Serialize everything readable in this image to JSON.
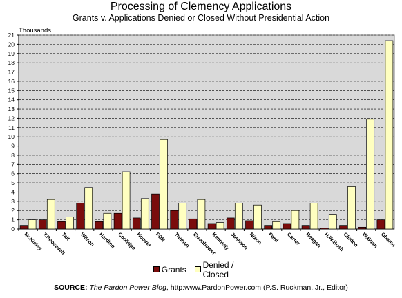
{
  "header": {
    "title": "Processing of Clemency Applications",
    "subtitle": "Grants v. Applications Denied or Closed Without Presidential Action",
    "unit_label": "Thousands"
  },
  "legend": {
    "grants_label": "Grants",
    "denied_label": "Denied / Closed"
  },
  "source": {
    "label": "SOURCE:",
    "blog": "The Pardon Power Blog",
    "rest": ", http:www.PardonPower.com (P.S. Ruckman, Jr., Editor)"
  },
  "colors": {
    "grants": "#7a0c0c",
    "denied": "#ffffc0",
    "plot_bg": "#d9d9d9"
  },
  "chart_data": {
    "type": "bar",
    "title": "Processing of Clemency Applications",
    "subtitle": "Grants v. Applications Denied or Closed Without Presidential Action",
    "ylabel": "Thousands",
    "xlabel": "",
    "ylim": [
      0,
      21
    ],
    "yticks": [
      0,
      1,
      2,
      3,
      4,
      5,
      6,
      7,
      8,
      9,
      10,
      11,
      12,
      13,
      14,
      15,
      16,
      17,
      18,
      19,
      20,
      21
    ],
    "grid": true,
    "legend_position": "bottom",
    "categories": [
      "McKinley",
      "T.Roosevelt",
      "Taft",
      "Wilson",
      "Harding",
      "Coolidge",
      "Hoover",
      "FDR",
      "Truman",
      "Eisenhower",
      "Kennedy",
      "Johnson",
      "Nixon",
      "Ford",
      "Carter",
      "Reagan",
      "H.W.Bush",
      "Clinton",
      "W.Bush",
      "Obama"
    ],
    "series": [
      {
        "name": "Grants",
        "color": "#7a0c0c",
        "values": [
          0.4,
          1.0,
          0.8,
          2.8,
          0.8,
          1.7,
          1.2,
          3.8,
          2.0,
          1.1,
          0.6,
          1.2,
          0.9,
          0.4,
          0.6,
          0.4,
          0.1,
          0.4,
          0.2,
          1.0
        ]
      },
      {
        "name": "Denied / Closed",
        "color": "#ffffc0",
        "values": [
          1.0,
          3.2,
          1.3,
          4.5,
          1.7,
          6.2,
          3.3,
          9.7,
          2.8,
          3.2,
          0.7,
          2.8,
          2.6,
          0.8,
          2.0,
          2.8,
          1.6,
          4.6,
          11.9,
          20.4
        ]
      }
    ]
  }
}
